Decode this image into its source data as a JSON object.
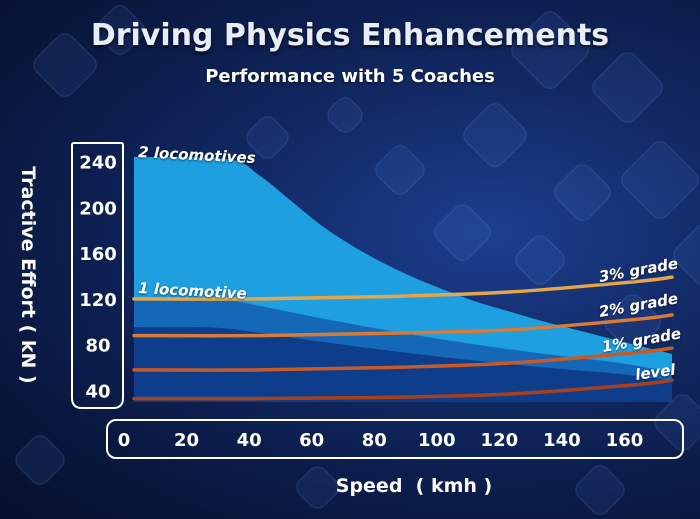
{
  "colors": {
    "background": "#0b1a45",
    "area_2_locomotives": "#1e9fe0",
    "area_1_locomotive": "#1568b8",
    "area_dark": "#0e3d8c",
    "grade_3": "#e3a64a",
    "grade_2": "#d97a35",
    "grade_1": "#c85a26",
    "level": "#a8401e"
  },
  "chart_data": {
    "type": "area",
    "title": "Driving Physics Enhancements",
    "subtitle": "Performance with 5 Coaches",
    "xlabel": "Speed  ( kmh )",
    "ylabel": "Tractive Effort  ( kN )",
    "xlim": [
      0,
      172
    ],
    "ylim": [
      30,
      250
    ],
    "x_ticks": [
      0,
      20,
      40,
      60,
      80,
      100,
      120,
      140,
      160
    ],
    "y_ticks": [
      40,
      80,
      120,
      160,
      200,
      240
    ],
    "grid": false,
    "series": [
      {
        "name": "2 locomotives",
        "x": [
          0,
          30,
          40,
          50,
          60,
          70,
          80,
          90,
          100,
          110,
          120,
          130,
          140,
          150,
          160,
          172
        ],
        "values": [
          244,
          242,
          228,
          206,
          184,
          166,
          151,
          138,
          127,
          117,
          109,
          101,
          94,
          87,
          80,
          72
        ]
      },
      {
        "name": "1 locomotive",
        "x": [
          0,
          20,
          30,
          40,
          60,
          80,
          100,
          120,
          140,
          150,
          160,
          172
        ],
        "values": [
          121,
          121,
          119,
          114,
          103,
          93,
          84,
          76,
          69,
          66,
          62,
          56
        ]
      },
      {
        "name": "3% grade",
        "x": [
          0,
          40,
          80,
          120,
          160,
          172
        ],
        "values": [
          120,
          120,
          122,
          126,
          135,
          139
        ]
      },
      {
        "name": "2% grade",
        "x": [
          0,
          40,
          80,
          120,
          160,
          172
        ],
        "values": [
          88,
          88,
          90,
          93,
          102,
          106
        ]
      },
      {
        "name": "1% grade",
        "x": [
          0,
          40,
          80,
          120,
          160,
          172
        ],
        "values": [
          58,
          58,
          60,
          64,
          73,
          77
        ]
      },
      {
        "name": "level",
        "x": [
          0,
          40,
          80,
          120,
          160,
          172
        ],
        "values": [
          33,
          33,
          34,
          37,
          45,
          49
        ]
      }
    ]
  },
  "annotations": {
    "two_locomotives": "2 locomotives",
    "one_locomotive": "1 locomotive",
    "grade3": "3% grade",
    "grade2": "2% grade",
    "grade1": "1% grade",
    "level": "level"
  }
}
